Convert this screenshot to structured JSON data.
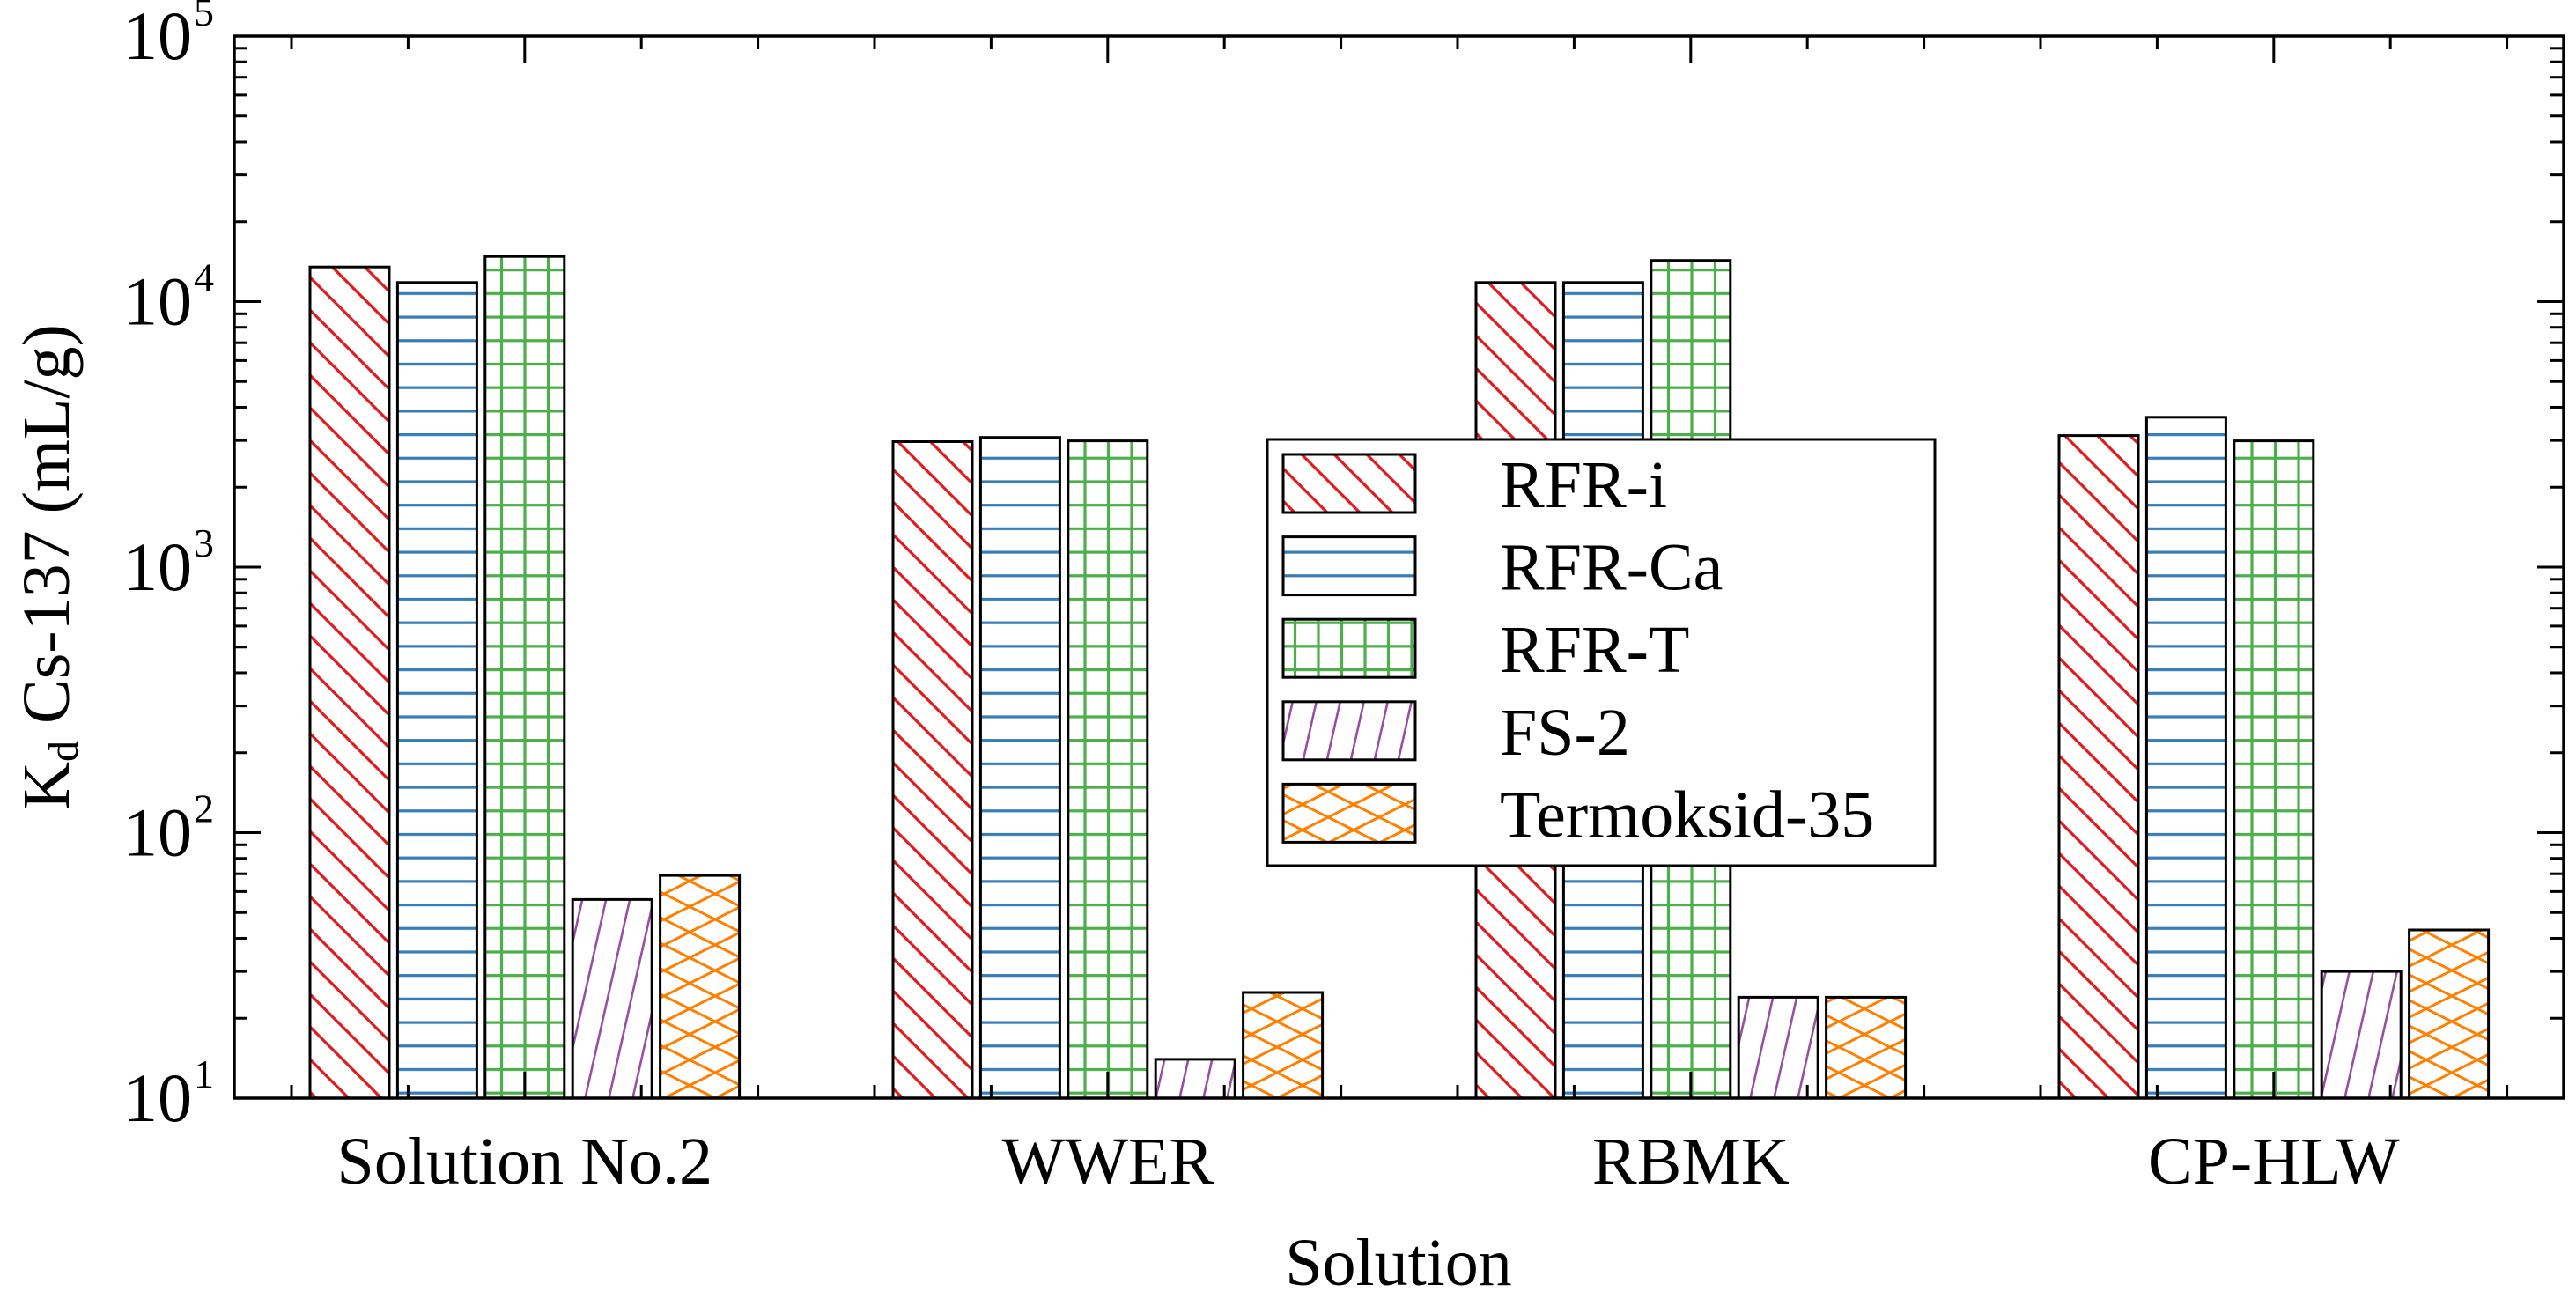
{
  "chart_data": {
    "type": "bar",
    "title": "",
    "xlabel": "Solution",
    "ylabel": "Kd Cs-137 (mL/g)",
    "ylabel_parts": {
      "main": "K",
      "sub": "d",
      "rest": " Cs-137 (mL/g)"
    },
    "yscale": "log",
    "ylim": [
      10,
      100000
    ],
    "yticks": [
      {
        "base": "10",
        "exp": "1",
        "value": 10
      },
      {
        "base": "10",
        "exp": "2",
        "value": 100
      },
      {
        "base": "10",
        "exp": "3",
        "value": 1000
      },
      {
        "base": "10",
        "exp": "4",
        "value": 10000
      },
      {
        "base": "10",
        "exp": "5",
        "value": 100000
      }
    ],
    "grid": false,
    "legend_position": "center (inside plot)",
    "categories": [
      "Solution No.2",
      "WWER",
      "RBMK",
      "CP-HLW"
    ],
    "series": [
      {
        "name": "RFR-i",
        "color": "#e41a1c",
        "hatch": "backslash",
        "values": [
          13500,
          2970,
          11800,
          3130
        ]
      },
      {
        "name": "RFR-Ca",
        "color": "#377eb8",
        "hatch": "horizontal",
        "values": [
          11800,
          3080,
          11800,
          3670
        ]
      },
      {
        "name": "RFR-T",
        "color": "#4daf4a",
        "hatch": "grid",
        "values": [
          14800,
          2990,
          14300,
          2990
        ]
      },
      {
        "name": "FS-2",
        "color": "#984ea3",
        "hatch": "slash",
        "values": [
          56,
          14,
          24,
          30
        ]
      },
      {
        "name": "Termoksid-35",
        "color": "#ff7f00",
        "hatch": "crosshatch",
        "values": [
          69,
          25,
          24,
          43
        ]
      }
    ]
  }
}
